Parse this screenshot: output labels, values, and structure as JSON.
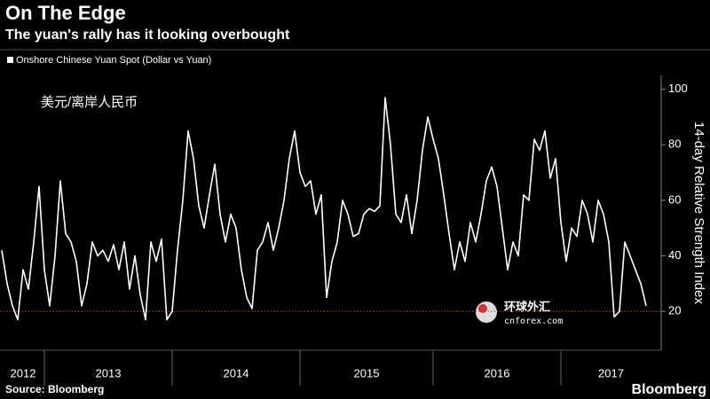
{
  "chart_data": {
    "type": "line",
    "title": "On The Edge",
    "subtitle": "The yuan's rally has it looking overbought",
    "y_label": "14-day Relative Strength Index",
    "annotation": "美元/离岸人民币",
    "watermark": [
      "环球外汇",
      "cnforex.com"
    ],
    "source": "Source: Bloomberg",
    "brand": "Bloomberg",
    "categories": [
      "2012",
      null,
      null,
      null,
      null,
      null,
      null,
      null,
      "2013",
      null,
      null,
      null,
      null,
      null,
      null,
      null,
      null,
      null,
      null,
      null,
      null,
      null,
      null,
      null,
      null,
      null,
      null,
      null,
      null,
      null,
      null,
      null,
      "2014",
      null,
      null,
      null,
      null,
      null,
      null,
      null,
      null,
      null,
      null,
      null,
      null,
      null,
      null,
      null,
      null,
      null,
      null,
      null,
      null,
      null,
      null,
      null,
      "2015",
      null,
      null,
      null,
      null,
      null,
      null,
      null,
      null,
      null,
      null,
      null,
      null,
      null,
      null,
      null,
      null,
      null,
      null,
      null,
      null,
      null,
      null,
      null,
      null,
      "2016",
      null,
      null,
      null,
      null,
      null,
      null,
      null,
      null,
      null,
      null,
      null,
      null,
      null,
      null,
      null,
      null,
      null,
      null,
      null,
      null,
      null,
      null,
      null,
      "2017",
      null,
      null,
      null,
      null,
      null,
      null,
      null,
      null,
      null,
      null,
      null,
      null,
      null,
      null,
      null,
      null
    ],
    "series": [
      {
        "name": "Onshore Chinese Yuan Spot (Dollar vs Yuan)",
        "color": "#ffffff",
        "values": [
          42,
          30,
          22,
          17,
          35,
          28,
          45,
          65,
          35,
          22,
          40,
          67,
          48,
          45,
          38,
          22,
          30,
          45,
          40,
          42,
          38,
          44,
          35,
          45,
          28,
          40,
          26,
          17,
          45,
          38,
          46,
          17,
          20,
          42,
          60,
          85,
          75,
          58,
          50,
          62,
          73,
          55,
          45,
          55,
          50,
          35,
          25,
          21,
          42,
          45,
          52,
          42,
          50,
          60,
          75,
          85,
          70,
          65,
          67,
          55,
          62,
          25,
          38,
          45,
          60,
          55,
          47,
          48,
          55,
          57,
          56,
          58,
          97,
          80,
          55,
          52,
          62,
          48,
          60,
          78,
          90,
          82,
          75,
          62,
          48,
          35,
          45,
          38,
          52,
          45,
          55,
          67,
          72,
          65,
          50,
          35,
          45,
          40,
          62,
          60,
          82,
          78,
          85,
          68,
          75,
          52,
          38,
          50,
          47,
          60,
          55,
          45,
          60,
          55,
          45,
          18,
          20,
          45,
          40,
          35,
          30,
          22
        ]
      }
    ],
    "ylim": [
      6,
      105
    ],
    "yticks": [
      20,
      40,
      60,
      80,
      100
    ],
    "reference_line": {
      "value": 20,
      "color": "#d0302f"
    },
    "grid": false
  }
}
